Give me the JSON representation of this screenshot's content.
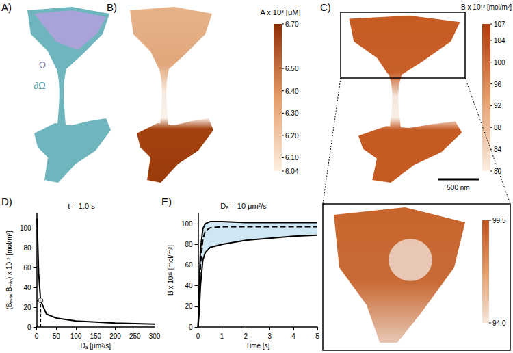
{
  "panels": {
    "A": {
      "label": "A)",
      "texts": [
        "Ω",
        "∂Ω"
      ]
    },
    "B": {
      "label": "B)",
      "colorbar": {
        "title": "A x 10³ [μM]",
        "range": [
          6.04,
          6.7
        ],
        "ticks": [
          {
            "value": 6.7,
            "label": "6.70"
          },
          {
            "value": 6.5,
            "label": "6.50"
          },
          {
            "value": 6.4,
            "label": "6.40"
          },
          {
            "value": 6.3,
            "label": "6.30"
          },
          {
            "value": 6.2,
            "label": "6.20"
          },
          {
            "value": 6.1,
            "label": "6.10"
          },
          6.04
        ]
      }
    },
    "C": {
      "label": "C)",
      "colorbar": {
        "title": "B x 10¹² [mol/m²]",
        "range": [
          80,
          107
        ],
        "ticks": [
          107,
          104,
          100,
          96,
          92,
          88,
          84,
          80
        ]
      },
      "scale_bar": "500 nm",
      "inset_colorbar": {
        "range": [
          94,
          99.5
        ],
        "ticks": [
          99.5,
          {
            "value": 94,
            "label": "94.0"
          }
        ]
      }
    }
  },
  "chart_data": [
    {
      "label": "D)",
      "type": "line",
      "title": "t = 1.0 s",
      "x_label": "Dₐ [μm²/s]",
      "y_label": "(Bₘₐₓ-Bₘᵢₙ) x 10¹² [mol/m²]",
      "x": [
        1,
        5,
        10,
        25,
        50,
        100,
        200,
        300
      ],
      "values": [
        110,
        55,
        27,
        13,
        9,
        6,
        4,
        3
      ],
      "color": "#000000",
      "line_style": "solid",
      "highlight": {
        "x": 10,
        "y": 27
      },
      "xlim": [
        0,
        300
      ],
      "xticks": [
        0,
        50,
        100,
        150,
        200,
        250,
        300
      ],
      "ylim": [
        0,
        115
      ],
      "yticks": [
        0,
        20,
        40,
        60,
        80,
        100
      ],
      "grid": false
    },
    {
      "label": "E)",
      "type": "line",
      "title": "Dₐ = 10 μm²/s",
      "x_label": "Time [s]",
      "y_label": "B x 10¹² [mol/m²]",
      "x": [
        0,
        0.05,
        0.1,
        0.2,
        0.3,
        0.5,
        1,
        2,
        3,
        4,
        5
      ],
      "series": [
        {
          "color": "#000000",
          "line_style": "solid",
          "values": [
            0,
            40,
            75,
            95,
            100,
            102,
            102,
            101,
            101,
            101,
            101
          ]
        },
        {
          "color": "#000000",
          "line_style": "dashed",
          "values": [
            0,
            30,
            60,
            85,
            93,
            96,
            97,
            97,
            97,
            97,
            97
          ]
        },
        {
          "color": "#000000",
          "line_style": "solid",
          "values": [
            0,
            15,
            40,
            65,
            72,
            77,
            80,
            84,
            86,
            88,
            89
          ]
        }
      ],
      "xlim": [
        0,
        5
      ],
      "xticks": [
        0,
        1,
        2,
        3,
        4,
        5
      ],
      "ylim": [
        0,
        110
      ],
      "yticks": [
        0,
        20,
        40,
        60,
        80,
        100
      ],
      "grid": false
    }
  ]
}
